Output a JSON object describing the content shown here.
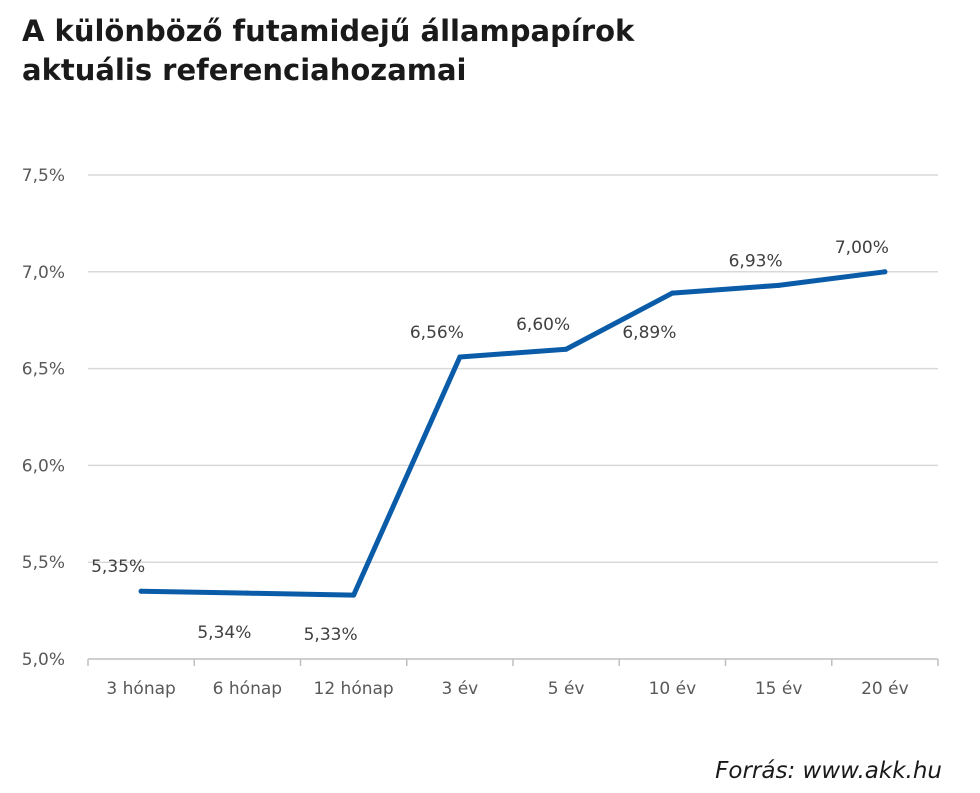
{
  "title_lines": [
    "A különböző futamidejű állampapírok",
    "aktuális referenciahozamai"
  ],
  "source": "Forrás: www.akk.hu",
  "colors": {
    "line": "#0A5CA8",
    "grid": "#D9D9D9",
    "axis": "#BFBFBF",
    "text": "#595959"
  },
  "chart_data": {
    "type": "line",
    "title": "A különböző futamidejű állampapírok aktuális referenciahozamai",
    "categories": [
      "3 hónap",
      "6 hónap",
      "12 hónap",
      "3 év",
      "5 év",
      "10 év",
      "15 év",
      "20 év"
    ],
    "series": [
      {
        "values": [
          5.35,
          5.34,
          5.33,
          6.56,
          6.6,
          6.89,
          6.93,
          7.0
        ]
      }
    ],
    "data_labels": [
      "5,35%",
      "5,34%",
      "5,33%",
      "6,56%",
      "6,60%",
      "6,89%",
      "6,93%",
      "7,00%"
    ],
    "data_label_positions": [
      "above",
      "below",
      "below",
      "above",
      "above",
      "below",
      "above",
      "above"
    ],
    "ylim": [
      5.0,
      7.5
    ],
    "yticks": [
      5.0,
      5.5,
      6.0,
      6.5,
      7.0,
      7.5
    ],
    "ytick_labels": [
      "5,0%",
      "5,5%",
      "6,0%",
      "6,5%",
      "7,0%",
      "7,5%"
    ],
    "grid": true,
    "legend": "none"
  }
}
